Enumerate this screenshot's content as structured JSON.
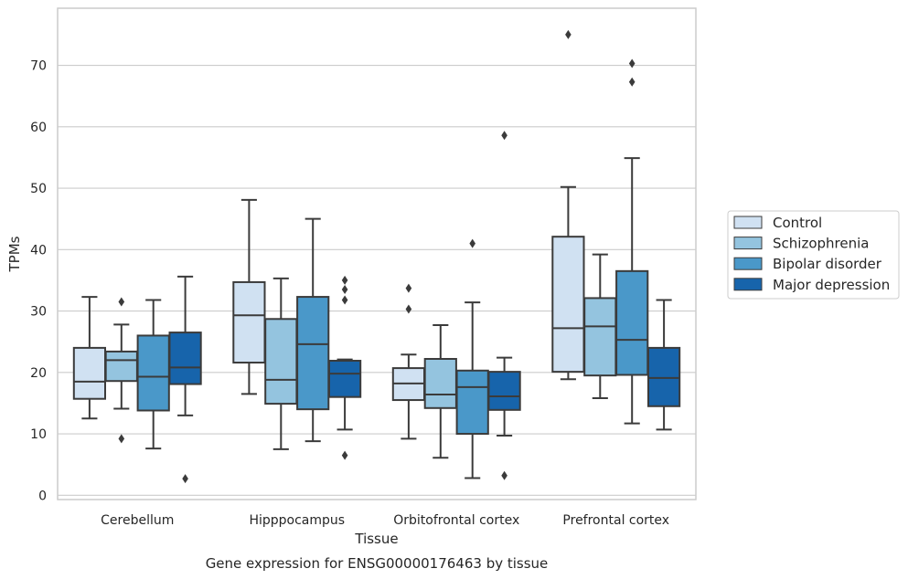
{
  "chart_data": {
    "type": "box",
    "xlabel": "Tissue",
    "ylabel": "TPMs",
    "caption": "Gene expression for ENSG00000176463 by tissue",
    "ylim": [
      -0.7,
      79.3
    ],
    "yticks": [
      0,
      10,
      20,
      30,
      40,
      50,
      60,
      70
    ],
    "grid": "horizontal",
    "legend_placement": "right-outside",
    "categories": [
      "Cerebellum",
      "Hipppocampus",
      "Orbitofrontal cortex",
      "Prefrontal cortex"
    ],
    "series": [
      {
        "name": "Control",
        "color": "#d0e1f2",
        "boxes": [
          {
            "whislo": 12.5,
            "q1": 15.7,
            "med": 18.5,
            "q3": 24.0,
            "whishi": 32.3,
            "fliers": []
          },
          {
            "whislo": 16.5,
            "q1": 21.6,
            "med": 29.3,
            "q3": 34.7,
            "whishi": 48.1,
            "fliers": []
          },
          {
            "whislo": 9.2,
            "q1": 15.5,
            "med": 18.2,
            "q3": 20.7,
            "whishi": 22.9,
            "fliers": [
              33.7,
              30.3
            ]
          },
          {
            "whislo": 18.9,
            "q1": 20.1,
            "med": 27.2,
            "q3": 42.1,
            "whishi": 50.2,
            "fliers": [
              75.0
            ]
          }
        ]
      },
      {
        "name": "Schizophrenia",
        "color": "#94c4df",
        "boxes": [
          {
            "whislo": 14.1,
            "q1": 18.6,
            "med": 22.0,
            "q3": 23.4,
            "whishi": 27.8,
            "fliers": [
              31.5,
              9.2
            ]
          },
          {
            "whislo": 7.5,
            "q1": 14.9,
            "med": 18.8,
            "q3": 28.7,
            "whishi": 35.3,
            "fliers": []
          },
          {
            "whislo": 6.1,
            "q1": 14.2,
            "med": 16.4,
            "q3": 22.2,
            "whishi": 27.7,
            "fliers": []
          },
          {
            "whislo": 15.8,
            "q1": 19.5,
            "med": 27.5,
            "q3": 32.1,
            "whishi": 39.2,
            "fliers": []
          }
        ]
      },
      {
        "name": "Bipolar disorder",
        "color": "#4a98c9",
        "boxes": [
          {
            "whislo": 7.6,
            "q1": 13.8,
            "med": 19.3,
            "q3": 26.0,
            "whishi": 31.8,
            "fliers": []
          },
          {
            "whislo": 8.8,
            "q1": 14.0,
            "med": 24.6,
            "q3": 32.3,
            "whishi": 45.0,
            "fliers": []
          },
          {
            "whislo": 2.8,
            "q1": 10.0,
            "med": 17.6,
            "q3": 20.3,
            "whishi": 31.4,
            "fliers": [
              41.0
            ]
          },
          {
            "whislo": 11.7,
            "q1": 19.6,
            "med": 25.3,
            "q3": 36.5,
            "whishi": 54.9,
            "fliers": [
              70.3,
              67.3
            ]
          }
        ]
      },
      {
        "name": "Major depression",
        "color": "#1764ab",
        "boxes": [
          {
            "whislo": 13.0,
            "q1": 18.1,
            "med": 20.8,
            "q3": 26.5,
            "whishi": 35.6,
            "fliers": [
              2.7
            ]
          },
          {
            "whislo": 10.7,
            "q1": 16.0,
            "med": 19.8,
            "q3": 21.9,
            "whishi": 22.1,
            "fliers": [
              35.0,
              33.5,
              31.8,
              6.5
            ]
          },
          {
            "whislo": 9.7,
            "q1": 13.9,
            "med": 16.1,
            "q3": 20.1,
            "whishi": 22.4,
            "fliers": [
              58.6,
              3.2
            ]
          },
          {
            "whislo": 10.7,
            "q1": 14.5,
            "med": 19.1,
            "q3": 24.0,
            "whishi": 31.8,
            "fliers": []
          }
        ]
      }
    ]
  }
}
